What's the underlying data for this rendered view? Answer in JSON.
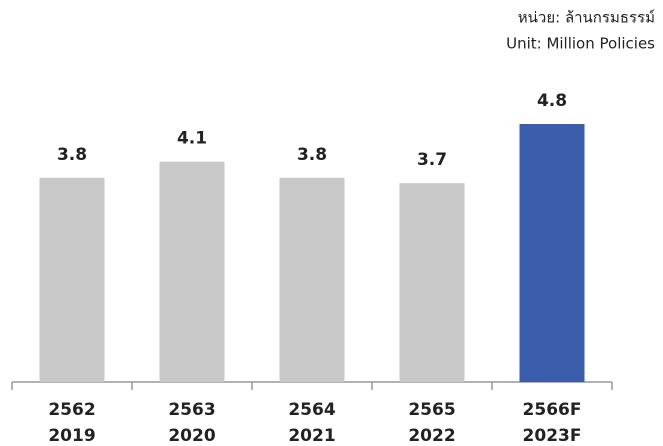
{
  "chart_data": {
    "type": "bar",
    "unit_lines": [
      "หน่วย: ล้านกรมธรรม์",
      "Unit: Million Policies"
    ],
    "categories": [
      [
        "2562",
        "2019"
      ],
      [
        "2563",
        "2020"
      ],
      [
        "2564",
        "2021"
      ],
      [
        "2565",
        "2022"
      ],
      [
        "2566F",
        "2023F"
      ]
    ],
    "values": [
      3.8,
      4.1,
      3.8,
      3.7,
      4.8
    ],
    "colors": [
      "#c8c8c8",
      "#c8c8c8",
      "#c8c8c8",
      "#c8c8c8",
      "#3a5eab"
    ]
  }
}
